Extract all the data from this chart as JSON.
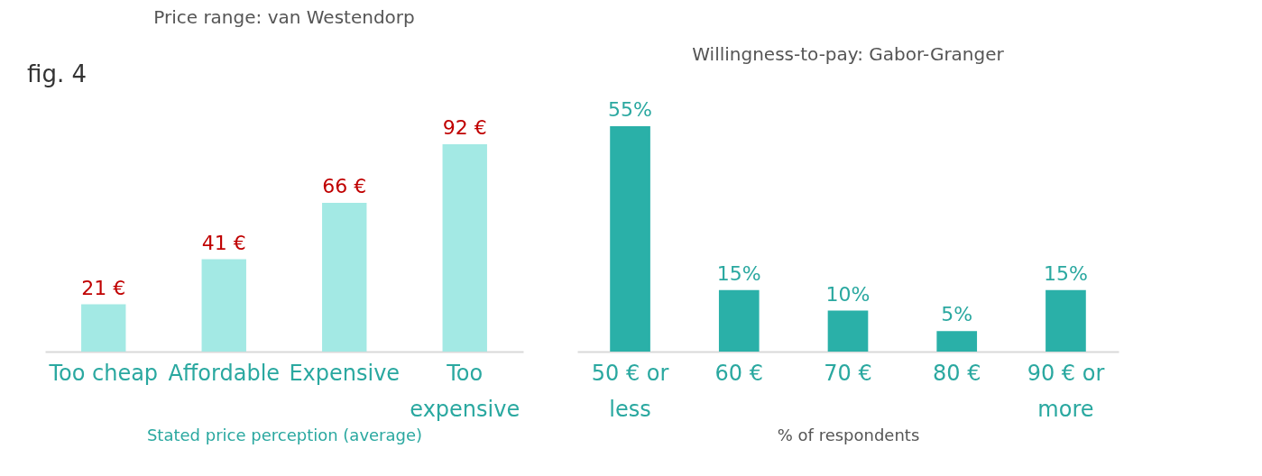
{
  "chart_data": [
    {
      "type": "bar",
      "title": "Price range: van Westendorp",
      "xlabel": "Stated price perception (average)",
      "annotations": [
        "fig. 4"
      ],
      "categories": [
        "Too cheap",
        "Affordable",
        "Expensive",
        "Too expensive"
      ],
      "values": [
        21,
        41,
        66,
        92
      ],
      "color": "#a3e9e4",
      "value_labels": [
        "21 €",
        "41 €",
        "66 €",
        "92 €"
      ]
    },
    {
      "type": "bar",
      "title": "Willingness-to-pay: Gabor-Granger",
      "xlabel": "% of respondents",
      "categories": [
        "50 € or less",
        "60 €",
        "70 €",
        "80 €",
        "90 € or more"
      ],
      "values": [
        55,
        15,
        10,
        5,
        15
      ],
      "color": "#2ab0a8",
      "value_labels": [
        "55%",
        "15%",
        "10%",
        "5%",
        "15%"
      ]
    }
  ]
}
